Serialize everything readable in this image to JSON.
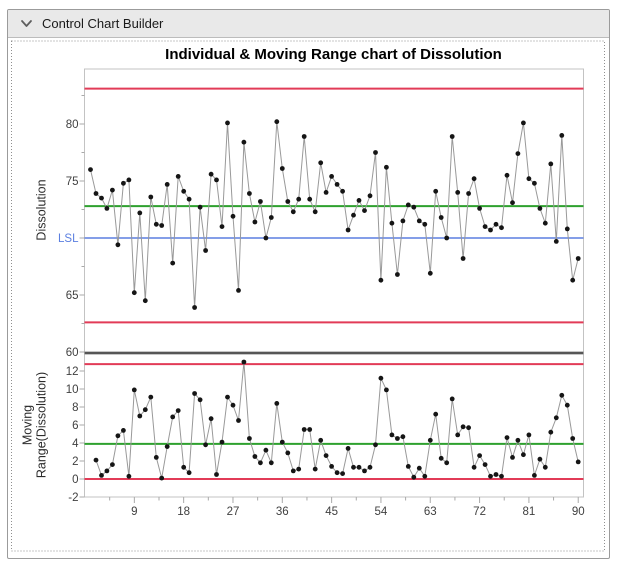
{
  "window": {
    "title": "Control Chart Builder",
    "collapse_icon": "chevron-down-icon"
  },
  "chart": {
    "title": "Individual & Moving Range chart of Dissolution",
    "top_panel": {
      "y_label": "Dissolution",
      "labeled_yticks": [
        80,
        75,
        65
      ],
      "boundary_tick_label": "60",
      "lsl_label": "LSL"
    },
    "bottom_panel": {
      "y_label_line1": "Moving",
      "y_label_line2": "Range(Dissolution)",
      "labeled_yticks": [
        12,
        10,
        8,
        6,
        4,
        2,
        0,
        -2
      ]
    },
    "colors": {
      "limit_red": "#E23B57",
      "center_green": "#2EA12E",
      "lsl_blue": "#5B7FE0",
      "divider_gray": "#565656",
      "connector_gray": "#999999",
      "point_black": "#151515",
      "frame_gray": "#c3c3c3",
      "tick_text": "#404040"
    }
  },
  "chart_data": {
    "type": "line",
    "title": "Individual & Moving Range chart of Dissolution",
    "x_start": 1,
    "x_end": 90,
    "xticks": [
      9,
      18,
      27,
      36,
      45,
      54,
      63,
      72,
      81,
      90
    ],
    "panels": [
      {
        "name": "Individuals",
        "ylabel": "Dissolution",
        "ylim": [
          60,
          84.8
        ],
        "yticks": [
          60,
          65,
          70,
          75,
          80
        ],
        "ucl": 83.1,
        "center": 72.8,
        "lcl": 62.6,
        "lsl": 70,
        "values": [
          76.0,
          73.9,
          73.5,
          72.6,
          74.2,
          69.4,
          74.8,
          75.1,
          65.2,
          72.2,
          64.5,
          73.6,
          71.2,
          71.1,
          74.7,
          67.8,
          75.4,
          74.1,
          73.4,
          63.9,
          72.7,
          68.9,
          75.6,
          75.1,
          71.0,
          80.1,
          71.9,
          65.4,
          78.4,
          73.9,
          71.4,
          73.2,
          70.0,
          71.8,
          80.2,
          76.1,
          73.2,
          72.3,
          73.4,
          78.9,
          73.4,
          72.3,
          76.6,
          74.0,
          75.4,
          74.7,
          74.1,
          70.7,
          72.0,
          73.3,
          72.4,
          73.7,
          77.5,
          66.3,
          76.2,
          71.3,
          66.8,
          71.5,
          72.9,
          72.7,
          71.5,
          71.2,
          66.9,
          74.1,
          71.8,
          70.0,
          78.9,
          74.0,
          68.2,
          73.9,
          75.2,
          72.6,
          71.0,
          70.7,
          71.2,
          70.9,
          75.5,
          73.1,
          77.4,
          80.1,
          75.2,
          74.8,
          72.6,
          71.3,
          76.5,
          69.7,
          79.0,
          70.8,
          66.3,
          68.2
        ]
      },
      {
        "name": "Moving Range",
        "ylabel": "Moving Range(Dissolution)",
        "ylim": [
          -2,
          13.9
        ],
        "yticks": [
          -2,
          0,
          2,
          4,
          6,
          8,
          10,
          12
        ],
        "ucl": 12.77,
        "center": 3.9,
        "lcl": 0,
        "derivation": "moving range = absolute difference of consecutive Individuals values, plotted at the index of the later point"
      }
    ]
  }
}
